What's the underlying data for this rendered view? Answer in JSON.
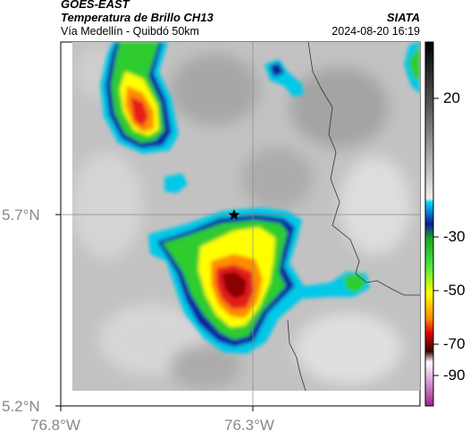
{
  "header": {
    "satellite": "GOES-EAST",
    "product": "Temperatura de Brillo CH13",
    "region": "Vía Medellín - Quibdó 50km",
    "agency": "SIATA",
    "datetime": "2024-08-20 16:19"
  },
  "axes": {
    "y_ticks": [
      "5.7°N",
      "5.2°N"
    ],
    "x_ticks": [
      "76.8°W",
      "76.3°W"
    ]
  },
  "colorbar": {
    "ticks": [
      "20",
      "-30",
      "-50",
      "-70",
      "-90"
    ]
  },
  "marker": {
    "icon": "star-icon"
  },
  "colors": {
    "cloud_cold_core": "#8b0000",
    "cloud_red": "#e31a1c",
    "cloud_orange": "#ff8c00",
    "cloud_yellow": "#ffff00",
    "cloud_green": "#2ecc2e",
    "cloud_blue": "#1020a0",
    "cloud_cyan": "#00c8e8",
    "background_gray": "#bdbdbd"
  }
}
